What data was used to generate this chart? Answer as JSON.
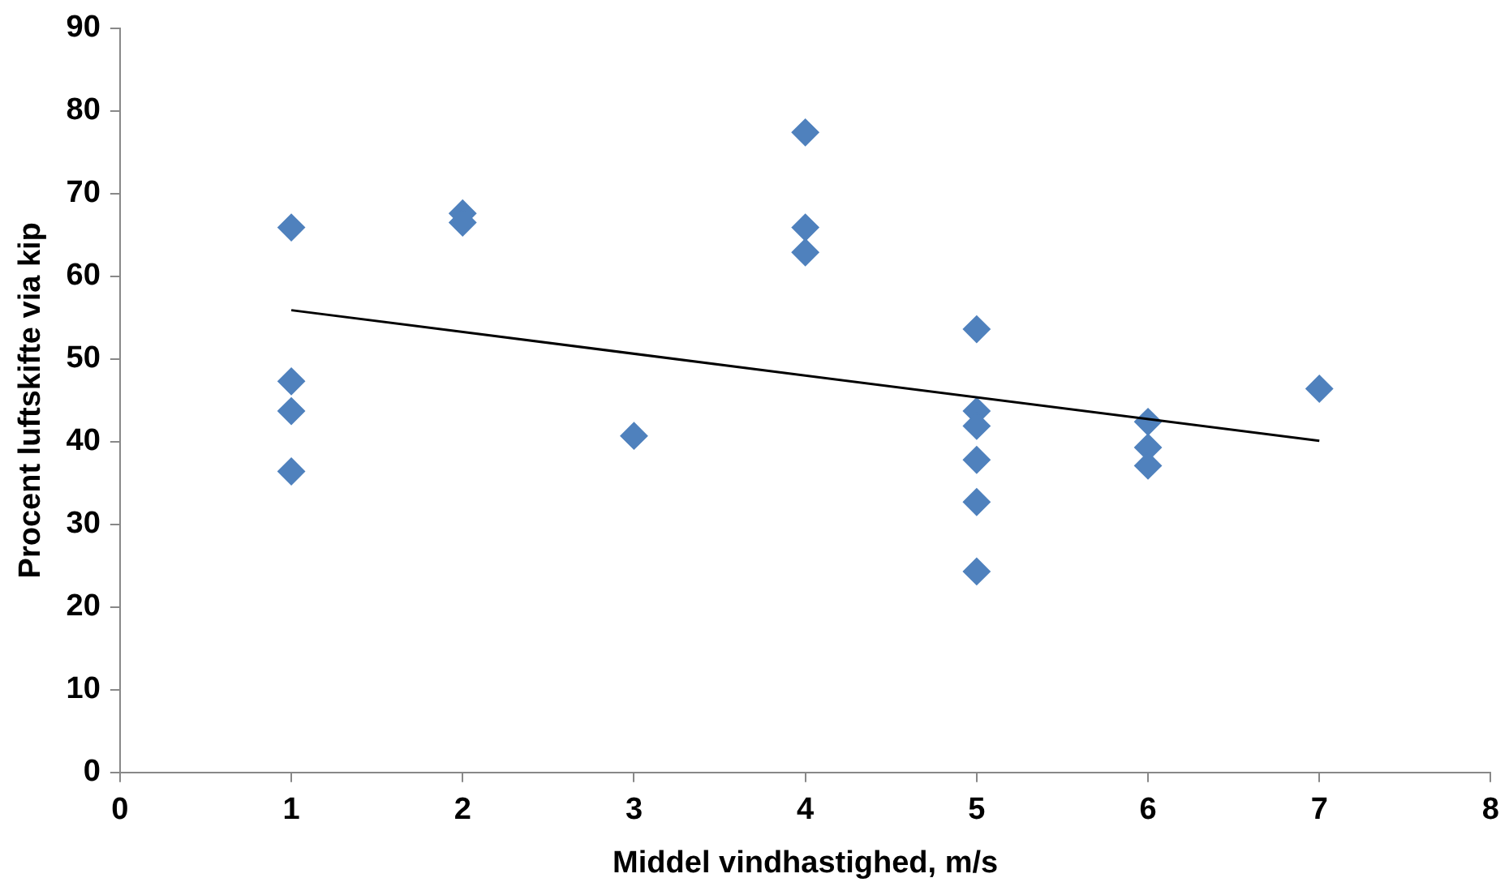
{
  "chart_data": {
    "type": "scatter",
    "xlabel": "Middel vindhastighed, m/s",
    "ylabel": "Procent luftskifte via kip",
    "xlim": [
      0,
      8
    ],
    "xticks": [
      0,
      1,
      2,
      3,
      4,
      5,
      6,
      7,
      8
    ],
    "ylim": [
      0,
      90
    ],
    "yticks": [
      0,
      10,
      20,
      30,
      40,
      50,
      60,
      70,
      80,
      90
    ],
    "grid": false,
    "legend": false,
    "marker": "diamond",
    "series": [
      {
        "type": "scatter",
        "color": "#4f81bd",
        "x": [
          1,
          1,
          1,
          1,
          2,
          2,
          3,
          4,
          4,
          4,
          5,
          5,
          5,
          5,
          5,
          5,
          6,
          6,
          6,
          7
        ],
        "values": [
          65.9,
          47.3,
          43.7,
          36.4,
          67.6,
          66.5,
          40.7,
          77.4,
          65.9,
          62.9,
          53.6,
          43.7,
          41.9,
          37.8,
          32.7,
          24.3,
          42.4,
          39.3,
          37.1,
          46.4
        ]
      },
      {
        "type": "line",
        "color": "#000000",
        "x": [
          1,
          7
        ],
        "values": [
          55.9,
          40.1
        ],
        "marker": "none",
        "line_style": "solid"
      }
    ]
  }
}
